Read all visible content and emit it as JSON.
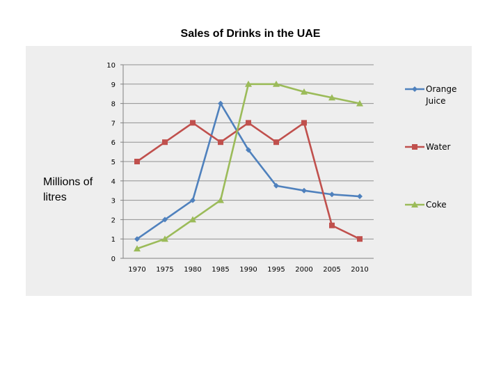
{
  "chart_data": {
    "type": "line",
    "title": "Sales of Drinks in the UAE",
    "ylabel": "Millions of litres",
    "xlabel": "",
    "ylim": [
      0,
      10
    ],
    "yticks": [
      "0",
      "1",
      "2",
      "3",
      "4",
      "5",
      "6",
      "7",
      "8",
      "9",
      "10"
    ],
    "x": [
      "1970",
      "1975",
      "1980",
      "1985",
      "1990",
      "1995",
      "2000",
      "2005",
      "2010"
    ],
    "grid": true,
    "legend_position": "right",
    "series": [
      {
        "name": "Orange Juice",
        "name_lines": [
          "Orange",
          "Juice"
        ],
        "color": "#4f81bd",
        "marker": "diamond",
        "values": [
          1,
          2,
          3,
          8,
          5.6,
          3.75,
          3.5,
          3.3,
          3.2
        ]
      },
      {
        "name": "Water",
        "name_lines": [
          "Water"
        ],
        "color": "#c0504d",
        "marker": "square",
        "values": [
          5,
          6,
          7,
          6,
          7,
          6,
          7,
          1.7,
          1
        ]
      },
      {
        "name": "Coke",
        "name_lines": [
          "Coke"
        ],
        "color": "#9bbb59",
        "marker": "triangle",
        "values": [
          0.5,
          1,
          2,
          3,
          9,
          9,
          8.6,
          8.3,
          8
        ]
      }
    ]
  }
}
